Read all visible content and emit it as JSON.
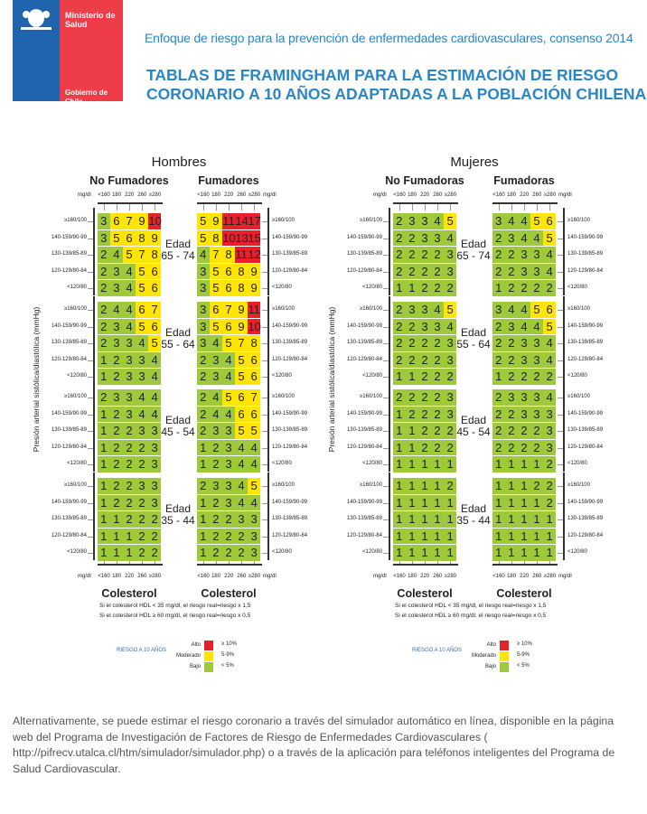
{
  "logo": {
    "ministry": "Ministerio de Salud",
    "government": "Gobierno de Chile",
    "colors": {
      "blue": "#1f64ad",
      "red": "#ee3d48"
    }
  },
  "header": {
    "subtitle": "Enfoque de riesgo para la prevención de enfermedades cardiovasculares, consenso 2014",
    "title_line1": "TABLAS DE FRAMINGHAM PARA LA ESTIMACIÓN DE RIESGO",
    "title_line2": "CORONARIO A 10 AÑOS ADAPTADAS A LA POBLACIÓN CHILENA"
  },
  "colors": {
    "high": "#e8202a",
    "moderate": "#ffe500",
    "low": "#9dc93b"
  },
  "cholesterol_unit": "mg/dl",
  "cholesterol_levels": [
    "<160",
    "180",
    "220",
    "260",
    "≥280"
  ],
  "bp_levels": [
    "≥160/100",
    "140-159/90-99",
    "130-139/85-89",
    "120-129/80-84",
    "<120/80"
  ],
  "age_groups": [
    "65 - 74",
    "55 - 64",
    "45 - 54",
    "35 - 44"
  ],
  "age_label": "Edad",
  "ylabel": "Presión arterial sistólica/diastólica (mmHg)",
  "xlabel": "Colesterol",
  "notes": [
    "Si el colesterol HDL < 35 mg/dl, el riesgo real=riesgo x 1,5",
    "Si el colesterol HDL ≥ 60 mg/dl, el riesgo real=riesgo x 0,5"
  ],
  "legend": {
    "title": "RIESGO A 10 AÑOS",
    "items": [
      {
        "label": "Alto",
        "range": "≥ 10%"
      },
      {
        "label": "Moderado",
        "range": "5-9%"
      },
      {
        "label": "Bajo",
        "range": "< 5%"
      }
    ]
  },
  "panels": [
    {
      "sex": "Hombres",
      "groups": [
        {
          "name": "No Fumadores",
          "tables": [
            [
              [
                3,
                6,
                7,
                9,
                10
              ],
              [
                3,
                5,
                6,
                8,
                9
              ],
              [
                2,
                4,
                5,
                7,
                8
              ],
              [
                2,
                3,
                4,
                5,
                6
              ],
              [
                2,
                3,
                4,
                5,
                6
              ]
            ],
            [
              [
                2,
                4,
                4,
                6,
                7
              ],
              [
                2,
                3,
                4,
                5,
                6
              ],
              [
                2,
                3,
                3,
                4,
                5
              ],
              [
                1,
                2,
                3,
                3,
                4
              ],
              [
                1,
                2,
                3,
                3,
                4
              ]
            ],
            [
              [
                2,
                3,
                3,
                4,
                4
              ],
              [
                1,
                2,
                3,
                4,
                4
              ],
              [
                1,
                2,
                2,
                3,
                3
              ],
              [
                1,
                2,
                2,
                2,
                3
              ],
              [
                1,
                2,
                2,
                2,
                3
              ]
            ],
            [
              [
                1,
                2,
                2,
                3,
                3
              ],
              [
                1,
                2,
                2,
                2,
                3
              ],
              [
                1,
                1,
                2,
                2,
                2
              ],
              [
                1,
                1,
                1,
                2,
                2
              ],
              [
                1,
                1,
                1,
                2,
                2
              ]
            ]
          ]
        },
        {
          "name": "Fumadores",
          "tables": [
            [
              [
                5,
                9,
                11,
                14,
                17
              ],
              [
                5,
                8,
                10,
                13,
                15
              ],
              [
                4,
                7,
                8,
                11,
                12
              ],
              [
                3,
                5,
                6,
                8,
                9
              ],
              [
                3,
                5,
                6,
                8,
                9
              ]
            ],
            [
              [
                3,
                6,
                7,
                9,
                11
              ],
              [
                3,
                5,
                6,
                9,
                10
              ],
              [
                3,
                4,
                5,
                7,
                8
              ],
              [
                2,
                3,
                4,
                5,
                6
              ],
              [
                2,
                3,
                4,
                5,
                6
              ]
            ],
            [
              [
                2,
                4,
                5,
                6,
                7
              ],
              [
                2,
                4,
                4,
                6,
                6
              ],
              [
                2,
                3,
                3,
                5,
                5
              ],
              [
                1,
                2,
                3,
                4,
                4
              ],
              [
                1,
                2,
                3,
                4,
                4
              ]
            ],
            [
              [
                2,
                3,
                3,
                4,
                5
              ],
              [
                1,
                2,
                3,
                4,
                4
              ],
              [
                1,
                2,
                2,
                3,
                3
              ],
              [
                1,
                2,
                2,
                2,
                3
              ],
              [
                1,
                2,
                2,
                2,
                3
              ]
            ]
          ]
        }
      ]
    },
    {
      "sex": "Mujeres",
      "groups": [
        {
          "name": "No Fumadoras",
          "tables": [
            [
              [
                2,
                3,
                3,
                4,
                5
              ],
              [
                2,
                2,
                3,
                3,
                4
              ],
              [
                2,
                2,
                2,
                2,
                3
              ],
              [
                2,
                2,
                2,
                2,
                3
              ],
              [
                1,
                1,
                2,
                2,
                2
              ]
            ],
            [
              [
                2,
                3,
                3,
                4,
                5
              ],
              [
                2,
                2,
                3,
                3,
                4
              ],
              [
                2,
                2,
                2,
                2,
                3
              ],
              [
                2,
                2,
                2,
                2,
                3
              ],
              [
                1,
                1,
                2,
                2,
                2
              ]
            ],
            [
              [
                2,
                2,
                2,
                2,
                3
              ],
              [
                1,
                2,
                2,
                2,
                3
              ],
              [
                1,
                1,
                2,
                2,
                2
              ],
              [
                1,
                1,
                2,
                2,
                2
              ],
              [
                1,
                1,
                1,
                1,
                1
              ]
            ],
            [
              [
                1,
                1,
                1,
                1,
                2
              ],
              [
                1,
                1,
                1,
                1,
                1
              ],
              [
                1,
                1,
                1,
                1,
                1
              ],
              [
                1,
                1,
                1,
                1,
                1
              ],
              [
                1,
                1,
                1,
                1,
                1
              ]
            ]
          ]
        },
        {
          "name": "Fumadoras",
          "tables": [
            [
              [
                3,
                4,
                4,
                5,
                6
              ],
              [
                2,
                3,
                4,
                4,
                5
              ],
              [
                2,
                2,
                3,
                3,
                4
              ],
              [
                2,
                2,
                3,
                3,
                4
              ],
              [
                1,
                2,
                2,
                2,
                2
              ]
            ],
            [
              [
                3,
                4,
                4,
                5,
                6
              ],
              [
                2,
                3,
                4,
                4,
                5
              ],
              [
                2,
                2,
                3,
                3,
                4
              ],
              [
                2,
                2,
                3,
                3,
                4
              ],
              [
                1,
                2,
                2,
                2,
                2
              ]
            ],
            [
              [
                2,
                3,
                3,
                3,
                4
              ],
              [
                2,
                2,
                3,
                3,
                3
              ],
              [
                2,
                2,
                2,
                2,
                3
              ],
              [
                2,
                2,
                2,
                2,
                3
              ],
              [
                1,
                1,
                1,
                1,
                2
              ]
            ],
            [
              [
                1,
                1,
                1,
                2,
                2
              ],
              [
                1,
                1,
                1,
                1,
                2
              ],
              [
                1,
                1,
                1,
                1,
                1
              ],
              [
                1,
                1,
                1,
                1,
                1
              ],
              [
                1,
                1,
                1,
                1,
                1
              ]
            ]
          ]
        }
      ]
    }
  ],
  "paragraph": "Alternativamente, se puede estimar el riesgo coronario a través del simulador automático en línea, disponible en la página web del  Programa de Investigación de Factores de Riesgo de Enfermedades Cardiovasculares ( http://pifrecv.utalca.cl/htm/simulador/simulador.php)  o a través de la aplicación para teléfonos inteligentes del Programa de Salud Cardiovascular."
}
